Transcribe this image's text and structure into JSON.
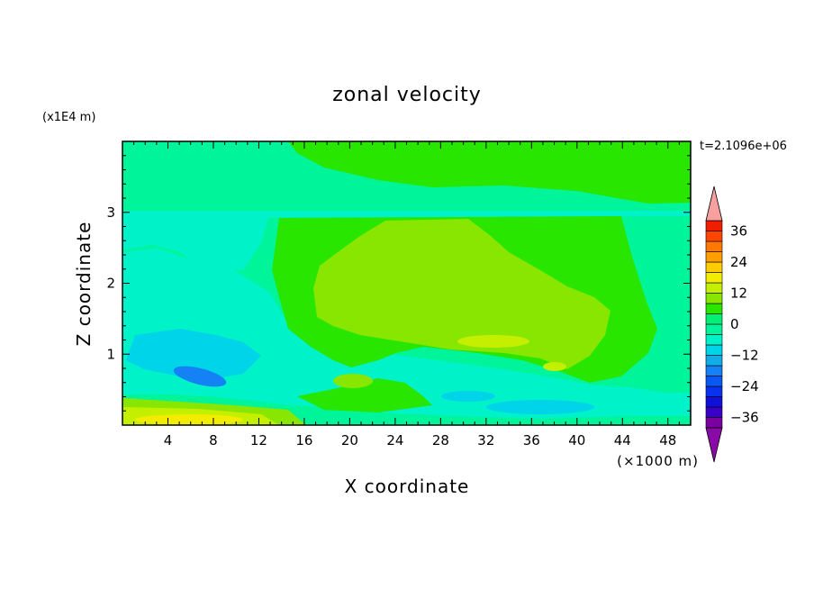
{
  "chart_data": {
    "type": "heatmap",
    "title": "zonal velocity",
    "xlabel": "X coordinate",
    "ylabel": "Z coordinate",
    "x_unit_label": "(×1000 m)",
    "y_unit_label": "(x1E4 m)",
    "time_label": "t=2.1096e+06",
    "xlim": [
      0,
      50
    ],
    "ylim": [
      0,
      4
    ],
    "x_ticks": [
      4,
      8,
      12,
      16,
      20,
      24,
      28,
      32,
      36,
      40,
      44,
      48
    ],
    "y_ticks": [
      1,
      2,
      3
    ],
    "colorbar": {
      "levels": [
        -40,
        -36,
        -32,
        -28,
        -24,
        -20,
        -16,
        -12,
        -8,
        -4,
        0,
        4,
        8,
        12,
        16,
        20,
        24,
        28,
        32,
        36,
        40
      ],
      "labels": [
        36,
        24,
        12,
        0,
        -12,
        -24,
        -36
      ],
      "colors": [
        "#7a00a0",
        "#3a00c8",
        "#1010d8",
        "#0a32ee",
        "#0a58f2",
        "#1482f4",
        "#10aee8",
        "#00d4e8",
        "#00f2c8",
        "#00f49a",
        "#00f076",
        "#28e600",
        "#88e600",
        "#c4f000",
        "#f2ec00",
        "#ffcc00",
        "#ff9e00",
        "#ff7800",
        "#ff4600",
        "#f01e00"
      ],
      "under_color": "#8a0aa8",
      "over_color": "#f8a0a0"
    },
    "field_colors": {
      "background": "#00f49a",
      "neg4": "#00f2c8",
      "neg8": "#00d4e8",
      "neg12": "#1482f4",
      "zero": "#28e600",
      "pos4": "#88e600",
      "pos8": "#c4f000",
      "pos12": "#f2ec00"
    }
  }
}
